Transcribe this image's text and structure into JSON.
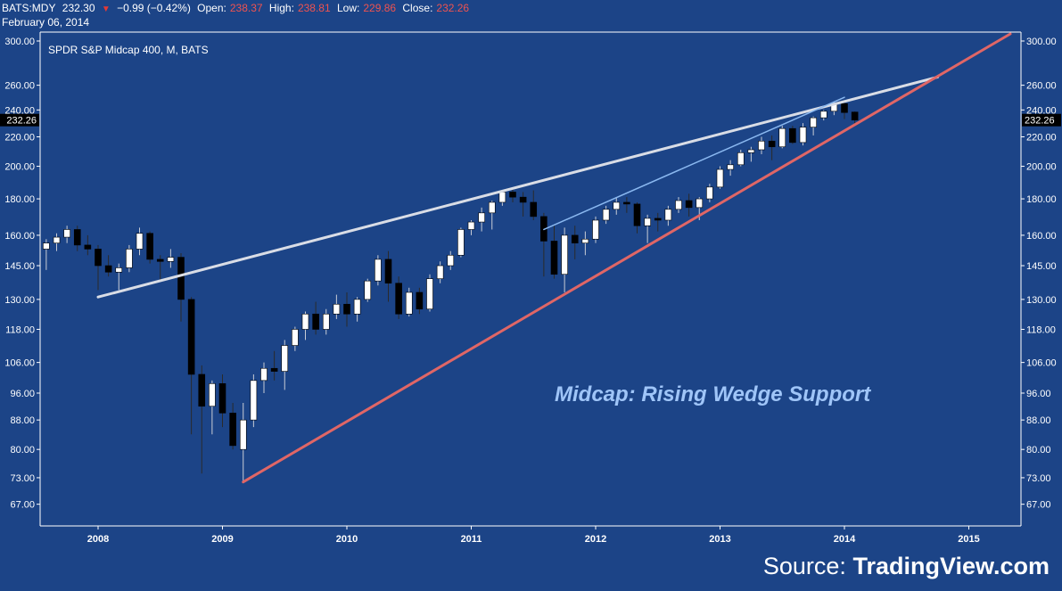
{
  "header": {
    "symbol": "BATS:MDY",
    "last": "232.30",
    "change": "−0.99 (−0.42%)",
    "open_label": "Open:",
    "open": "238.37",
    "high_label": "High:",
    "high": "238.81",
    "low_label": "Low:",
    "low": "229.86",
    "close_label": "Close:",
    "close": "232.26",
    "date": "February 06, 2014"
  },
  "colors": {
    "background": "#1c4487",
    "up_candle": "#ffffff",
    "down_candle": "#000000",
    "support_line": "#e06666",
    "resistance_line": "#d9dde6",
    "inner_line": "#8ab8f0",
    "annotation": "#9fc5f8",
    "price_tag": "#000000"
  },
  "watermark": {
    "prefix": "Source:",
    "brand": "TradingView.com"
  },
  "chart_data": {
    "type": "candlestick",
    "title": "SPDR S&P Midcap 400, M, BATS",
    "xlabel": "",
    "ylabel": "",
    "scale": "log",
    "ylim": [
      63,
      307
    ],
    "y_ticks": [
      "67.00",
      "73.00",
      "80.00",
      "88.00",
      "96.00",
      "106.00",
      "118.00",
      "130.00",
      "145.00",
      "160.00",
      "180.00",
      "200.00",
      "220.00",
      "240.00",
      "260.00",
      "300.00"
    ],
    "x_ticks": [
      "2008",
      "2009",
      "2010",
      "2011",
      "2012",
      "2013",
      "2014",
      "2015"
    ],
    "last_price_label": "232.26",
    "annotation": "Midcap: Rising Wedge Support",
    "grid": false,
    "candles": [
      {
        "date": "2007-08",
        "o": 153,
        "h": 158,
        "l": 143,
        "c": 156
      },
      {
        "date": "2007-09",
        "o": 156,
        "h": 161,
        "l": 152,
        "c": 159
      },
      {
        "date": "2007-10",
        "o": 159,
        "h": 165,
        "l": 156,
        "c": 163
      },
      {
        "date": "2007-11",
        "o": 163,
        "h": 165,
        "l": 152,
        "c": 155
      },
      {
        "date": "2007-12",
        "o": 155,
        "h": 160,
        "l": 150,
        "c": 153
      },
      {
        "date": "2008-01",
        "o": 153,
        "h": 155,
        "l": 134,
        "c": 145
      },
      {
        "date": "2008-02",
        "o": 145,
        "h": 150,
        "l": 140,
        "c": 142
      },
      {
        "date": "2008-03",
        "o": 142,
        "h": 146,
        "l": 134,
        "c": 144
      },
      {
        "date": "2008-04",
        "o": 144,
        "h": 155,
        "l": 142,
        "c": 153
      },
      {
        "date": "2008-05",
        "o": 153,
        "h": 164,
        "l": 150,
        "c": 161
      },
      {
        "date": "2008-06",
        "o": 161,
        "h": 162,
        "l": 146,
        "c": 148
      },
      {
        "date": "2008-07",
        "o": 148,
        "h": 150,
        "l": 138,
        "c": 147
      },
      {
        "date": "2008-08",
        "o": 147,
        "h": 153,
        "l": 144,
        "c": 149
      },
      {
        "date": "2008-09",
        "o": 149,
        "h": 151,
        "l": 121,
        "c": 130
      },
      {
        "date": "2008-10",
        "o": 130,
        "h": 131,
        "l": 84,
        "c": 102
      },
      {
        "date": "2008-11",
        "o": 102,
        "h": 105,
        "l": 74,
        "c": 92
      },
      {
        "date": "2008-12",
        "o": 92,
        "h": 100,
        "l": 84,
        "c": 99
      },
      {
        "date": "2009-01",
        "o": 99,
        "h": 102,
        "l": 86,
        "c": 90
      },
      {
        "date": "2009-02",
        "o": 90,
        "h": 93,
        "l": 80,
        "c": 81
      },
      {
        "date": "2009-03",
        "o": 80,
        "h": 93,
        "l": 72,
        "c": 88
      },
      {
        "date": "2009-04",
        "o": 88,
        "h": 102,
        "l": 86,
        "c": 100
      },
      {
        "date": "2009-05",
        "o": 100,
        "h": 106,
        "l": 96,
        "c": 104
      },
      {
        "date": "2009-06",
        "o": 104,
        "h": 110,
        "l": 100,
        "c": 103
      },
      {
        "date": "2009-07",
        "o": 103,
        "h": 114,
        "l": 97,
        "c": 112
      },
      {
        "date": "2009-08",
        "o": 112,
        "h": 119,
        "l": 110,
        "c": 118
      },
      {
        "date": "2009-09",
        "o": 118,
        "h": 125,
        "l": 114,
        "c": 124
      },
      {
        "date": "2009-10",
        "o": 124,
        "h": 129,
        "l": 116,
        "c": 118
      },
      {
        "date": "2009-11",
        "o": 118,
        "h": 126,
        "l": 116,
        "c": 124
      },
      {
        "date": "2009-12",
        "o": 124,
        "h": 132,
        "l": 122,
        "c": 128
      },
      {
        "date": "2010-01",
        "o": 128,
        "h": 133,
        "l": 119,
        "c": 124
      },
      {
        "date": "2010-02",
        "o": 124,
        "h": 131,
        "l": 121,
        "c": 130
      },
      {
        "date": "2010-03",
        "o": 130,
        "h": 139,
        "l": 129,
        "c": 138
      },
      {
        "date": "2010-04",
        "o": 138,
        "h": 150,
        "l": 136,
        "c": 148
      },
      {
        "date": "2010-05",
        "o": 148,
        "h": 152,
        "l": 129,
        "c": 137
      },
      {
        "date": "2010-06",
        "o": 137,
        "h": 140,
        "l": 122,
        "c": 124
      },
      {
        "date": "2010-07",
        "o": 124,
        "h": 135,
        "l": 123,
        "c": 133
      },
      {
        "date": "2010-08",
        "o": 133,
        "h": 135,
        "l": 124,
        "c": 126
      },
      {
        "date": "2010-09",
        "o": 126,
        "h": 141,
        "l": 125,
        "c": 139
      },
      {
        "date": "2010-10",
        "o": 139,
        "h": 147,
        "l": 137,
        "c": 145
      },
      {
        "date": "2010-11",
        "o": 145,
        "h": 152,
        "l": 143,
        "c": 150
      },
      {
        "date": "2010-12",
        "o": 150,
        "h": 164,
        "l": 149,
        "c": 163
      },
      {
        "date": "2011-01",
        "o": 163,
        "h": 168,
        "l": 160,
        "c": 167
      },
      {
        "date": "2011-02",
        "o": 167,
        "h": 175,
        "l": 162,
        "c": 172
      },
      {
        "date": "2011-03",
        "o": 172,
        "h": 179,
        "l": 163,
        "c": 178
      },
      {
        "date": "2011-04",
        "o": 178,
        "h": 185,
        "l": 176,
        "c": 184
      },
      {
        "date": "2011-05",
        "o": 184,
        "h": 186,
        "l": 178,
        "c": 181
      },
      {
        "date": "2011-06",
        "o": 181,
        "h": 184,
        "l": 170,
        "c": 178
      },
      {
        "date": "2011-07",
        "o": 178,
        "h": 185,
        "l": 168,
        "c": 170
      },
      {
        "date": "2011-08",
        "o": 170,
        "h": 172,
        "l": 140,
        "c": 157
      },
      {
        "date": "2011-09",
        "o": 157,
        "h": 165,
        "l": 139,
        "c": 141
      },
      {
        "date": "2011-10",
        "o": 141,
        "h": 164,
        "l": 133,
        "c": 160
      },
      {
        "date": "2011-11",
        "o": 160,
        "h": 165,
        "l": 148,
        "c": 156
      },
      {
        "date": "2011-12",
        "o": 156,
        "h": 162,
        "l": 150,
        "c": 158
      },
      {
        "date": "2012-01",
        "o": 158,
        "h": 170,
        "l": 156,
        "c": 168
      },
      {
        "date": "2012-02",
        "o": 168,
        "h": 176,
        "l": 166,
        "c": 174
      },
      {
        "date": "2012-03",
        "o": 174,
        "h": 181,
        "l": 171,
        "c": 178
      },
      {
        "date": "2012-04",
        "o": 178,
        "h": 181,
        "l": 172,
        "c": 177
      },
      {
        "date": "2012-05",
        "o": 177,
        "h": 178,
        "l": 161,
        "c": 165
      },
      {
        "date": "2012-06",
        "o": 165,
        "h": 171,
        "l": 156,
        "c": 169
      },
      {
        "date": "2012-07",
        "o": 169,
        "h": 172,
        "l": 162,
        "c": 168
      },
      {
        "date": "2012-08",
        "o": 168,
        "h": 176,
        "l": 165,
        "c": 174
      },
      {
        "date": "2012-09",
        "o": 174,
        "h": 181,
        "l": 172,
        "c": 179
      },
      {
        "date": "2012-10",
        "o": 179,
        "h": 183,
        "l": 170,
        "c": 175
      },
      {
        "date": "2012-11",
        "o": 175,
        "h": 181,
        "l": 168,
        "c": 180
      },
      {
        "date": "2012-12",
        "o": 180,
        "h": 189,
        "l": 178,
        "c": 187
      },
      {
        "date": "2013-01",
        "o": 187,
        "h": 200,
        "l": 186,
        "c": 198
      },
      {
        "date": "2013-02",
        "o": 198,
        "h": 204,
        "l": 194,
        "c": 201
      },
      {
        "date": "2013-03",
        "o": 201,
        "h": 211,
        "l": 200,
        "c": 209
      },
      {
        "date": "2013-04",
        "o": 209,
        "h": 213,
        "l": 203,
        "c": 211
      },
      {
        "date": "2013-05",
        "o": 211,
        "h": 220,
        "l": 208,
        "c": 217
      },
      {
        "date": "2013-06",
        "o": 217,
        "h": 221,
        "l": 204,
        "c": 213
      },
      {
        "date": "2013-07",
        "o": 213,
        "h": 228,
        "l": 212,
        "c": 226
      },
      {
        "date": "2013-08",
        "o": 226,
        "h": 228,
        "l": 215,
        "c": 216
      },
      {
        "date": "2013-09",
        "o": 216,
        "h": 230,
        "l": 214,
        "c": 227
      },
      {
        "date": "2013-10",
        "o": 227,
        "h": 235,
        "l": 221,
        "c": 234
      },
      {
        "date": "2013-11",
        "o": 234,
        "h": 240,
        "l": 232,
        "c": 239
      },
      {
        "date": "2013-12",
        "o": 239,
        "h": 246,
        "l": 236,
        "c": 245
      },
      {
        "date": "2014-01",
        "o": 245,
        "h": 247,
        "l": 233,
        "c": 238
      },
      {
        "date": "2014-02",
        "o": 238.37,
        "h": 238.81,
        "l": 229.86,
        "c": 232.26
      }
    ],
    "trendlines": [
      {
        "name": "resistance",
        "from": {
          "date": "2008-01",
          "value": 131
        },
        "to": {
          "date": "2014-10",
          "value": 267
        }
      },
      {
        "name": "inner",
        "from": {
          "date": "2011-08",
          "value": 163
        },
        "to": {
          "date": "2014-01",
          "value": 250
        }
      },
      {
        "name": "support",
        "from": {
          "date": "2009-03",
          "value": 72
        },
        "to": {
          "date": "2015-05",
          "value": 307
        }
      }
    ]
  }
}
